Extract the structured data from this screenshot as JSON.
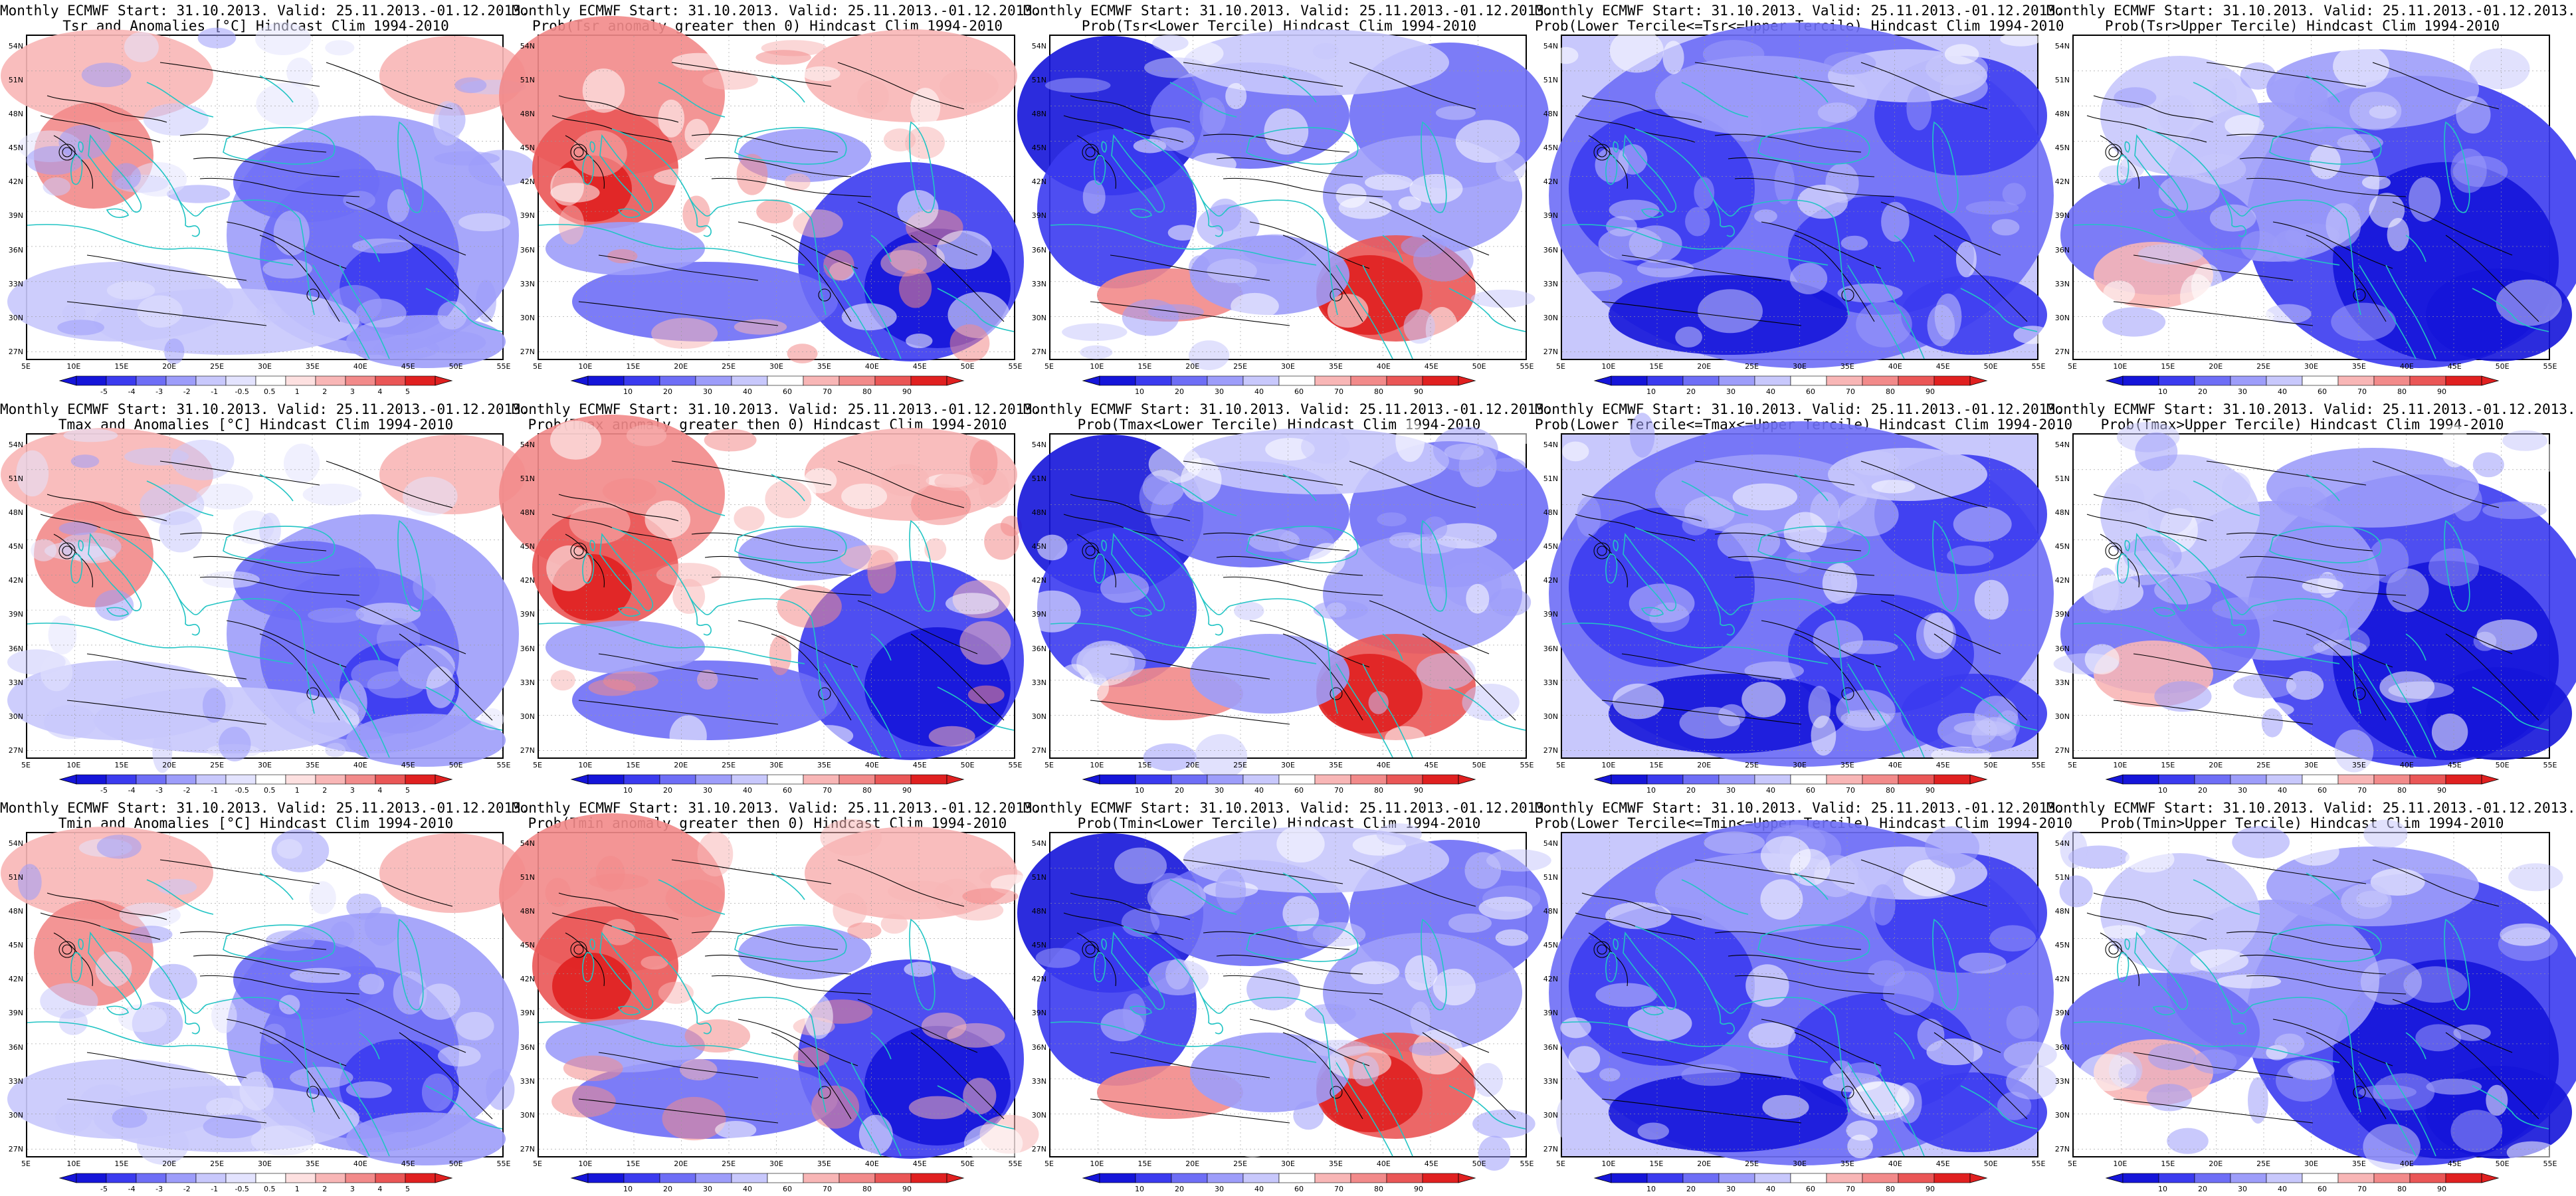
{
  "layout_grid": {
    "rows": 3,
    "cols": 5
  },
  "colors": {
    "anom_scale": [
      "#1515d9",
      "#3b3bef",
      "#6e6ef6",
      "#9d9dfa",
      "#c8c8fc",
      "#e3e3fe",
      "#ffffff",
      "#fde0e0",
      "#f8b6b6",
      "#f28a8a",
      "#ea5656",
      "#e02020"
    ],
    "prob_scale": [
      "#1515d9",
      "#3b3bef",
      "#6e6ef6",
      "#9d9dfa",
      "#c8c8fc",
      "#ffffff",
      "#f8b6b6",
      "#f28a8a",
      "#ea5656",
      "#e02020"
    ],
    "coastline": "#22c4c4",
    "contour": "#000000"
  },
  "map_axes": {
    "lat_labels": [
      "54N",
      "51N",
      "48N",
      "45N",
      "42N",
      "39N",
      "36N",
      "33N",
      "30N",
      "27N"
    ],
    "lon_labels": [
      "5E",
      "10E",
      "15E",
      "20E",
      "25E",
      "30E",
      "35E",
      "40E",
      "45E",
      "50E",
      "55E"
    ]
  },
  "colorbars": {
    "anomaly_labels": [
      "-5",
      "-4",
      "-3",
      "-2",
      "-1",
      "-0.5",
      "0.5",
      "1",
      "2",
      "3",
      "4",
      "5"
    ],
    "prob_labels": [
      "10",
      "20",
      "30",
      "40",
      "60",
      "70",
      "80",
      "90"
    ]
  },
  "panels": [
    {
      "line1": "Monthly ECMWF Start: 31.10.2013. Valid: 25.11.2013.-01.12.2013.",
      "line2": "Tsr and Anomalies [°C] Hindcast Clim 1994-2010",
      "scale": "anomaly",
      "pattern": "anom"
    },
    {
      "line1": "Monthly ECMWF Start: 31.10.2013. Valid: 25.11.2013.-01.12.2013.",
      "line2": "Prob(Tsr anomaly greater then 0) Hindcast Clim 1994-2010",
      "scale": "prob",
      "pattern": "probpos"
    },
    {
      "line1": "Monthly ECMWF Start: 31.10.2013. Valid: 25.11.2013.-01.12.2013.",
      "line2": "Prob(Tsr<Lower Tercile) Hindcast Clim 1994-2010",
      "scale": "prob",
      "pattern": "lower"
    },
    {
      "line1": "Monthly ECMWF Start: 31.10.2013. Valid: 25.11.2013.-01.12.2013.",
      "line2": "Prob(Lower Tercile<=Tsr<=Upper Tercile) Hindcast Clim 1994-2010",
      "scale": "prob",
      "pattern": "middle"
    },
    {
      "line1": "Monthly ECMWF Start: 31.10.2013. Valid: 25.11.2013.-01.12.2013.",
      "line2": "Prob(Tsr>Upper Tercile) Hindcast Clim 1994-2010",
      "scale": "prob",
      "pattern": "upper"
    },
    {
      "line1": "Monthly ECMWF Start: 31.10.2013. Valid: 25.11.2013.-01.12.2013.",
      "line2": "Tmax and Anomalies [°C] Hindcast Clim 1994-2010",
      "scale": "anomaly",
      "pattern": "anom"
    },
    {
      "line1": "Monthly ECMWF Start: 31.10.2013. Valid: 25.11.2013.-01.12.2013.",
      "line2": "Prob(Tmax anomaly greater then 0) Hindcast Clim 1994-2010",
      "scale": "prob",
      "pattern": "probpos"
    },
    {
      "line1": "Monthly ECMWF Start: 31.10.2013. Valid: 25.11.2013.-01.12.2013.",
      "line2": "Prob(Tmax<Lower Tercile) Hindcast Clim 1994-2010",
      "scale": "prob",
      "pattern": "lower"
    },
    {
      "line1": "Monthly ECMWF Start: 31.10.2013. Valid: 25.11.2013.-01.12.2013.",
      "line2": "Prob(Lower Tercile<=Tmax<=Upper Tercile) Hindcast Clim 1994-2010",
      "scale": "prob",
      "pattern": "middle"
    },
    {
      "line1": "Monthly ECMWF Start: 31.10.2013. Valid: 25.11.2013.-01.12.2013.",
      "line2": "Prob(Tmax>Upper Tercile) Hindcast Clim 1994-2010",
      "scale": "prob",
      "pattern": "upper"
    },
    {
      "line1": "Monthly ECMWF Start: 31.10.2013. Valid: 25.11.2013.-01.12.2013.",
      "line2": "Tmin and Anomalies [°C] Hindcast Clim 1994-2010",
      "scale": "anomaly",
      "pattern": "anom"
    },
    {
      "line1": "Monthly ECMWF Start: 31.10.2013. Valid: 25.11.2013.-01.12.2013.",
      "line2": "Prob(Tmin anomaly greater then 0) Hindcast Clim 1994-2010",
      "scale": "prob",
      "pattern": "probpos"
    },
    {
      "line1": "Monthly ECMWF Start: 31.10.2013. Valid: 25.11.2013.-01.12.2013.",
      "line2": "Prob(Tmin<Lower Tercile) Hindcast Clim 1994-2010",
      "scale": "prob",
      "pattern": "lower"
    },
    {
      "line1": "Monthly ECMWF Start: 31.10.2013. Valid: 25.11.2013.-01.12.2013.",
      "line2": "Prob(Lower Tercile<=Tmin<=Upper Tercile) Hindcast Clim 1994-2010",
      "scale": "prob",
      "pattern": "middle"
    },
    {
      "line1": "Monthly ECMWF Start: 31.10.2013. Valid: 25.11.2013.-01.12.2013.",
      "line2": "Prob(Tmin>Upper Tercile) Hindcast Clim 1994-2010",
      "scale": "prob",
      "pattern": "upper"
    }
  ]
}
